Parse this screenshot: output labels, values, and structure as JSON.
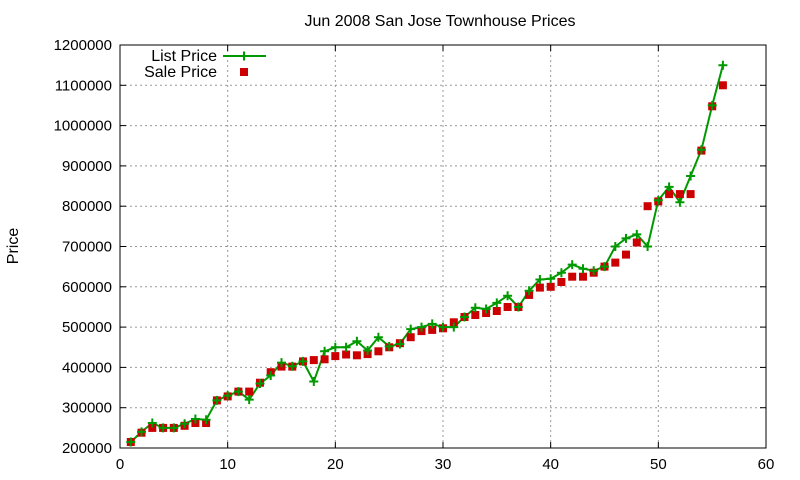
{
  "chart_data": {
    "type": "line",
    "title": "Jun 2008 San Jose Townhouse Prices",
    "xlabel": "",
    "ylabel": "Price",
    "xlim": [
      0,
      60
    ],
    "ylim": [
      200000,
      1200000
    ],
    "xticks": [
      0,
      10,
      20,
      30,
      40,
      50,
      60
    ],
    "yticks": [
      200000,
      300000,
      400000,
      500000,
      600000,
      700000,
      800000,
      900000,
      1000000,
      1100000,
      1200000
    ],
    "grid": true,
    "legend_position": "top-left",
    "series": [
      {
        "name": "List Price",
        "style": "line+plus",
        "color": "#009900",
        "x": [
          1,
          2,
          3,
          4,
          5,
          6,
          7,
          8,
          9,
          10,
          11,
          12,
          13,
          14,
          15,
          16,
          17,
          18,
          19,
          20,
          21,
          22,
          23,
          24,
          25,
          26,
          27,
          28,
          29,
          30,
          31,
          32,
          33,
          34,
          35,
          36,
          37,
          38,
          39,
          40,
          41,
          42,
          43,
          44,
          45,
          46,
          47,
          48,
          49,
          50,
          51,
          52,
          53,
          54,
          55,
          56
        ],
        "y": [
          215000,
          240000,
          262000,
          250000,
          250000,
          260000,
          272000,
          270000,
          318000,
          330000,
          340000,
          320000,
          360000,
          380000,
          412000,
          403000,
          415000,
          365000,
          440000,
          450000,
          450000,
          465000,
          442000,
          475000,
          452000,
          458000,
          495000,
          500000,
          508000,
          500000,
          500000,
          525000,
          548000,
          545000,
          560000,
          578000,
          550000,
          590000,
          618000,
          620000,
          635000,
          655000,
          645000,
          640000,
          650000,
          700000,
          720000,
          730000,
          700000,
          815000,
          848000,
          810000,
          875000,
          940000,
          1050000,
          1150000
        ]
      },
      {
        "name": "Sale Price",
        "style": "square-points",
        "color": "#cc0000",
        "x": [
          1,
          2,
          3,
          4,
          5,
          6,
          7,
          8,
          9,
          10,
          11,
          12,
          13,
          14,
          15,
          16,
          17,
          18,
          19,
          20,
          21,
          22,
          23,
          24,
          25,
          26,
          27,
          28,
          29,
          30,
          31,
          32,
          33,
          34,
          35,
          36,
          37,
          38,
          39,
          40,
          41,
          42,
          43,
          44,
          45,
          46,
          47,
          48,
          49,
          50,
          51,
          52,
          53,
          54,
          55,
          56
        ],
        "y": [
          215000,
          238000,
          250000,
          250000,
          250000,
          255000,
          262000,
          262000,
          318000,
          328000,
          340000,
          340000,
          362000,
          388000,
          402000,
          402000,
          415000,
          418000,
          420000,
          428000,
          432000,
          430000,
          433000,
          440000,
          450000,
          460000,
          475000,
          490000,
          493000,
          497000,
          512000,
          525000,
          530000,
          535000,
          540000,
          550000,
          550000,
          580000,
          598000,
          600000,
          612000,
          625000,
          625000,
          635000,
          650000,
          660000,
          680000,
          710000,
          800000,
          812000,
          830000,
          830000,
          830000,
          938000,
          1048000,
          1100000
        ]
      }
    ]
  }
}
